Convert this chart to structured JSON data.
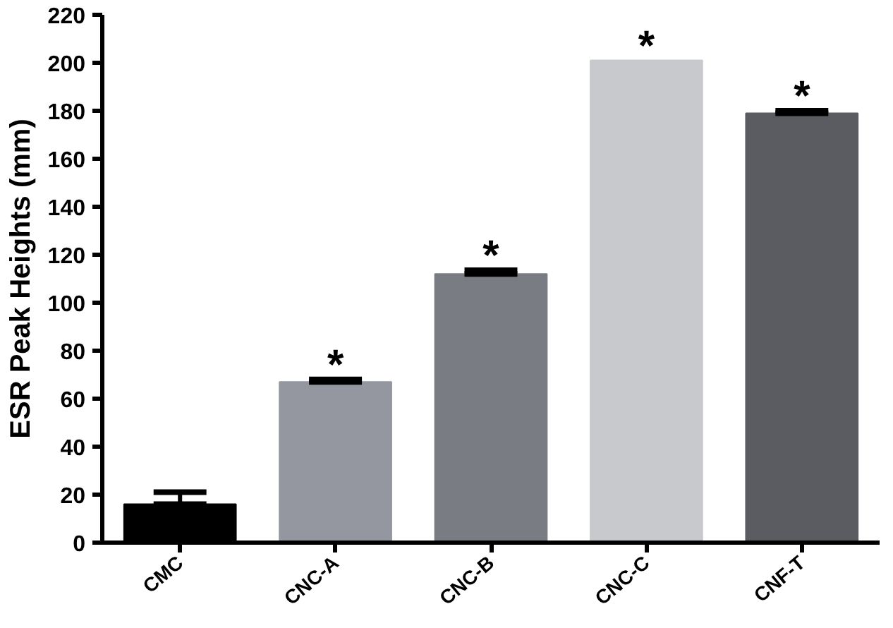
{
  "chart_data": {
    "type": "bar",
    "ylabel": "ESR Peak Heights (mm)",
    "categories": [
      "CMC",
      "CNC-A",
      "CNC-B",
      "CNC-C",
      "CNF-T"
    ],
    "values": [
      16,
      67,
      112,
      201,
      179
    ],
    "colors": [
      "#000000",
      "#9497a0",
      "#7a7c84",
      "#c8c9cc",
      "#5b5c61"
    ],
    "errors": [
      [
        16,
        21
      ],
      [
        67,
        68
      ],
      [
        112,
        113.5
      ],
      null,
      [
        179,
        180
      ]
    ],
    "ylim": [
      0,
      220
    ],
    "yticks": [
      0,
      20,
      40,
      60,
      80,
      100,
      120,
      140,
      160,
      180,
      200,
      220
    ],
    "grid": false,
    "annotations": [
      "*",
      "*",
      "*",
      "*"
    ]
  }
}
